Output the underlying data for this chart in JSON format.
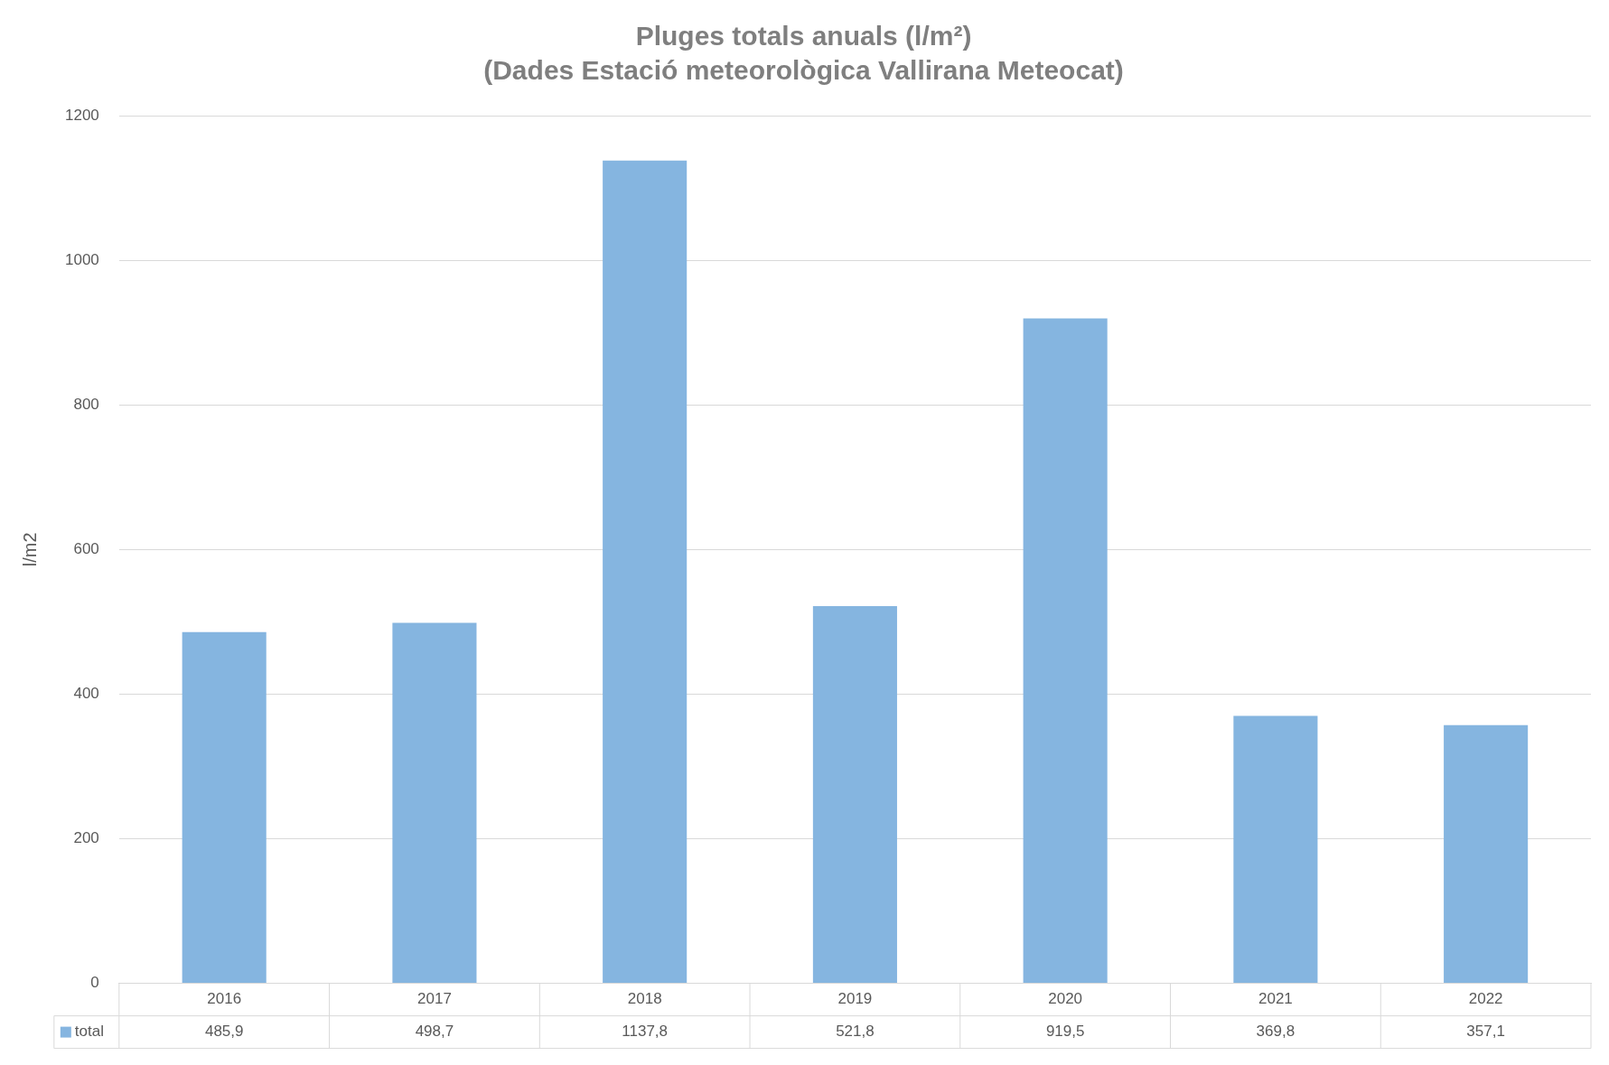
{
  "chart_data": {
    "type": "bar",
    "title": "Pluges totals anuals (l/m²)",
    "subtitle": "(Dades Estació meteorològica Vallirana Meteocat)",
    "ylabel": "l/m2",
    "categories": [
      "2016",
      "2017",
      "2018",
      "2019",
      "2020",
      "2021",
      "2022"
    ],
    "series": [
      {
        "name": "total",
        "color": "#85b5e0",
        "values": [
          485.9,
          498.7,
          1137.8,
          521.8,
          919.5,
          369.8,
          357.1
        ],
        "value_labels": [
          "485,9",
          "498,7",
          "1137,8",
          "521,8",
          "919,5",
          "369,8",
          "357,1"
        ]
      }
    ],
    "ylim": [
      0,
      1200
    ],
    "yticks": [
      0,
      200,
      400,
      600,
      800,
      1000,
      1200
    ],
    "grid": "y",
    "legend": "bottom"
  }
}
